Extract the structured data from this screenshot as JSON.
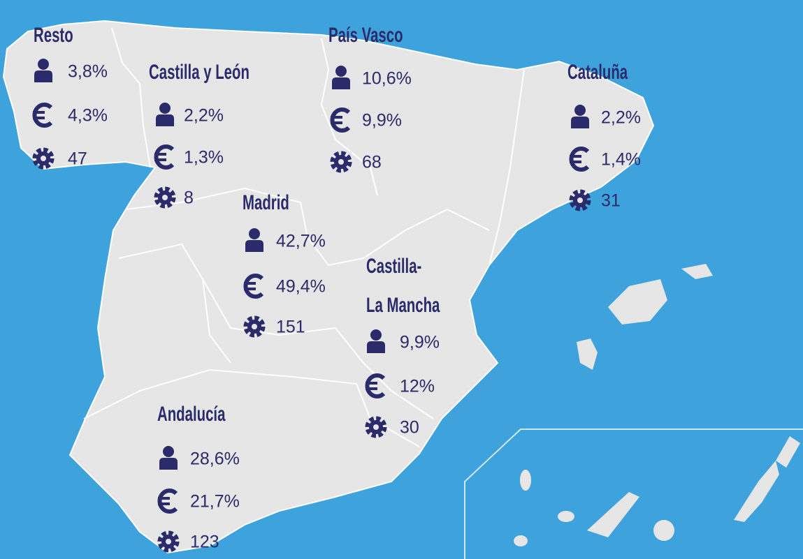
{
  "regions": [
    {
      "name": "Resto",
      "population": "3,8%",
      "revenue": "4,3%",
      "companies": "47"
    },
    {
      "name": "Castilla y León",
      "population": "2,2%",
      "revenue": "1,3%",
      "companies": "8"
    },
    {
      "name": "País Vasco",
      "population": "10,6%",
      "revenue": "9,9%",
      "companies": "68"
    },
    {
      "name": "Cataluña",
      "population": "2,2%",
      "revenue": "1,4%",
      "companies": "31"
    },
    {
      "name": "Madrid",
      "population": "42,7%",
      "revenue": "49,4%",
      "companies": "151"
    },
    {
      "name_lines": [
        "Castilla-",
        "La Mancha"
      ],
      "population": "9,9%",
      "revenue": "12%",
      "companies": "30"
    },
    {
      "name": "Andalucía",
      "population": "28,6%",
      "revenue": "21,7%",
      "companies": "123"
    }
  ]
}
